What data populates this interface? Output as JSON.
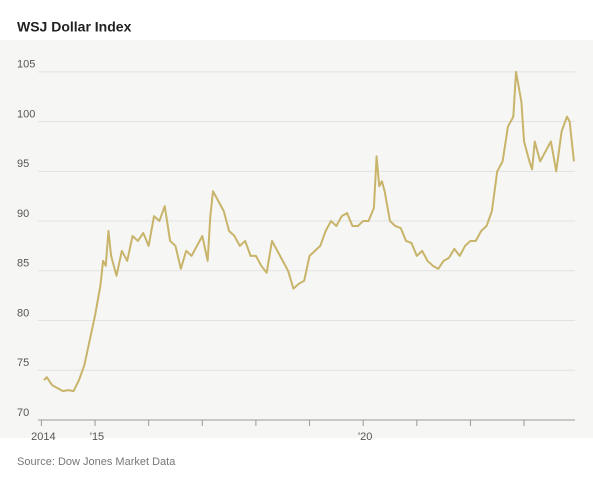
{
  "chart_data": {
    "type": "line",
    "title": "WSJ Dollar Index",
    "source": "Source: Dow Jones Market Data",
    "color": "#c8b46a",
    "grid": true,
    "xlim": [
      2014,
      2023.95
    ],
    "ylim": [
      70,
      108
    ],
    "yticks": [
      70,
      75,
      80,
      85,
      90,
      95,
      100,
      105
    ],
    "xticks": [
      {
        "value": 2014,
        "label": "2014"
      },
      {
        "value": 2015,
        "label": "'15"
      },
      {
        "value": 2020,
        "label": "'20"
      }
    ],
    "xminor_ticks": [
      2016,
      2017,
      2018,
      2019,
      2021,
      2022,
      2023
    ],
    "x": [
      2014.05,
      2014.1,
      2014.2,
      2014.3,
      2014.4,
      2014.5,
      2014.6,
      2014.7,
      2014.8,
      2014.9,
      2015.0,
      2015.1,
      2015.15,
      2015.2,
      2015.25,
      2015.3,
      2015.4,
      2015.5,
      2015.6,
      2015.7,
      2015.8,
      2015.9,
      2016.0,
      2016.1,
      2016.2,
      2016.3,
      2016.4,
      2016.5,
      2016.6,
      2016.7,
      2016.8,
      2016.9,
      2017.0,
      2017.1,
      2017.15,
      2017.2,
      2017.3,
      2017.4,
      2017.5,
      2017.6,
      2017.7,
      2017.8,
      2017.9,
      2018.0,
      2018.1,
      2018.2,
      2018.3,
      2018.4,
      2018.5,
      2018.6,
      2018.7,
      2018.8,
      2018.9,
      2019.0,
      2019.1,
      2019.2,
      2019.3,
      2019.4,
      2019.5,
      2019.6,
      2019.7,
      2019.8,
      2019.9,
      2020.0,
      2020.1,
      2020.2,
      2020.25,
      2020.3,
      2020.35,
      2020.4,
      2020.5,
      2020.6,
      2020.7,
      2020.8,
      2020.9,
      2021.0,
      2021.1,
      2021.2,
      2021.3,
      2021.4,
      2021.5,
      2021.6,
      2021.7,
      2021.8,
      2021.9,
      2022.0,
      2022.1,
      2022.2,
      2022.3,
      2022.4,
      2022.5,
      2022.6,
      2022.7,
      2022.8,
      2022.85,
      2022.9,
      2022.95,
      2023.0,
      2023.1,
      2023.15,
      2023.2,
      2023.3,
      2023.4,
      2023.5,
      2023.6,
      2023.65,
      2023.7,
      2023.8,
      2023.85,
      2023.9,
      2023.93
    ],
    "values": [
      74,
      74.3,
      73.5,
      73.2,
      72.9,
      73,
      72.9,
      74,
      75.5,
      78,
      80.5,
      83.5,
      86,
      85.5,
      89,
      86.5,
      84.5,
      87,
      86,
      88.5,
      88,
      88.8,
      87.5,
      90.5,
      90,
      91.5,
      88,
      87.5,
      85.2,
      87,
      86.5,
      87.5,
      88.5,
      86,
      90.5,
      93,
      92,
      91,
      89,
      88.5,
      87.5,
      88,
      86.5,
      86.5,
      85.5,
      84.8,
      88,
      87,
      86,
      85,
      83.2,
      83.7,
      84,
      86.5,
      87,
      87.5,
      89,
      90,
      89.5,
      90.5,
      90.8,
      89.5,
      89.5,
      90,
      90,
      91.3,
      96.5,
      93.5,
      94,
      93,
      90,
      89.5,
      89.3,
      88,
      87.8,
      86.5,
      87,
      86,
      85.5,
      85.2,
      86,
      86.3,
      87.2,
      86.5,
      87.5,
      88,
      88,
      89,
      89.5,
      91,
      95,
      96,
      99.5,
      100.5,
      105,
      103.5,
      102,
      98,
      96,
      95.2,
      98,
      96,
      97,
      98,
      95,
      97,
      99,
      100.5,
      100,
      97.5,
      96
    ]
  }
}
